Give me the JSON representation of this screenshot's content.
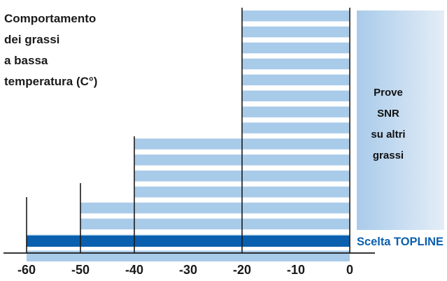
{
  "chart_data": {
    "type": "bar",
    "title_lines": [
      "Comportamento",
      "dei grassi",
      "a bassa",
      "temperatura (C°)"
    ],
    "xlim": [
      -60,
      0
    ],
    "x_ticks": [
      "-60",
      "-50",
      "-40",
      "-30",
      "-20",
      "-10",
      "0"
    ],
    "x_tick_values": [
      -60,
      -50,
      -40,
      -30,
      -20,
      -10,
      0
    ],
    "series": [
      {
        "name": "Prove SNR su altri grassi",
        "label_lines": [
          "Prove",
          "SNR",
          "su altri",
          "grassi"
        ],
        "color": "#a9cbea",
        "bars": [
          {
            "start": -60,
            "end": 0
          },
          {
            "start": -60,
            "end": 0
          },
          {
            "start": -50,
            "end": 0
          },
          {
            "start": -50,
            "end": 0
          },
          {
            "start": -40,
            "end": 0
          },
          {
            "start": -40,
            "end": 0
          },
          {
            "start": -40,
            "end": 0
          },
          {
            "start": -40,
            "end": 0
          },
          {
            "start": -20,
            "end": 0
          },
          {
            "start": -20,
            "end": 0
          },
          {
            "start": -20,
            "end": 0
          },
          {
            "start": -20,
            "end": 0
          },
          {
            "start": -20,
            "end": 0
          },
          {
            "start": -20,
            "end": 0
          },
          {
            "start": -20,
            "end": 0
          },
          {
            "start": -20,
            "end": 0
          }
        ]
      },
      {
        "name": "Scelta TOPLINE",
        "label": "Scelta TOPLINE",
        "color": "#0a5fae",
        "bars": [
          {
            "start": -60,
            "end": 0
          }
        ]
      }
    ],
    "grid": false
  },
  "colors": {
    "light_bar": "#a9cbea",
    "dark_bar": "#0a5fae",
    "panel_left": "#a9cbea",
    "panel_right": "#e4edf7",
    "axis": "#1a1a1a",
    "topline_text": "#0a5fae"
  }
}
